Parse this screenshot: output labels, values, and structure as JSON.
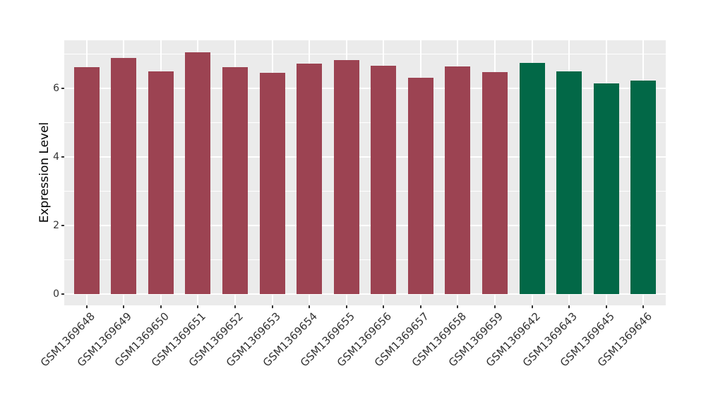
{
  "chart_data": {
    "type": "bar",
    "title": "",
    "xlabel": "",
    "ylabel": "Expression Level",
    "categories": [
      "GSM1369648",
      "GSM1369649",
      "GSM1369650",
      "GSM1369651",
      "GSM1369652",
      "GSM1369653",
      "GSM1369654",
      "GSM1369655",
      "GSM1369656",
      "GSM1369657",
      "GSM1369658",
      "GSM1369659",
      "GSM1369642",
      "GSM1369643",
      "GSM1369645",
      "GSM1369646"
    ],
    "values": [
      6.61,
      6.89,
      6.5,
      7.06,
      6.62,
      6.45,
      6.72,
      6.82,
      6.65,
      6.31,
      6.63,
      6.47,
      6.75,
      6.5,
      6.15,
      6.22
    ],
    "bar_color_names": [
      "maroon",
      "maroon",
      "maroon",
      "maroon",
      "maroon",
      "maroon",
      "maroon",
      "maroon",
      "maroon",
      "maroon",
      "maroon",
      "maroon",
      "green",
      "green",
      "green",
      "green"
    ],
    "palette": {
      "maroon": "#9C4352",
      "green": "#026847"
    },
    "y_ticks": [
      0,
      2,
      4,
      6
    ],
    "y_minor_ticks": [
      1,
      3,
      5,
      7
    ],
    "ylim": [
      -0.33,
      7.4
    ],
    "grid": true,
    "legend": "none",
    "panel_background": "#EBEBEB",
    "gridline_color": "#FFFFFF",
    "axis_text_color": "#333333",
    "axis_title_color": "#000000",
    "figure_background": "#FFFFFF"
  }
}
